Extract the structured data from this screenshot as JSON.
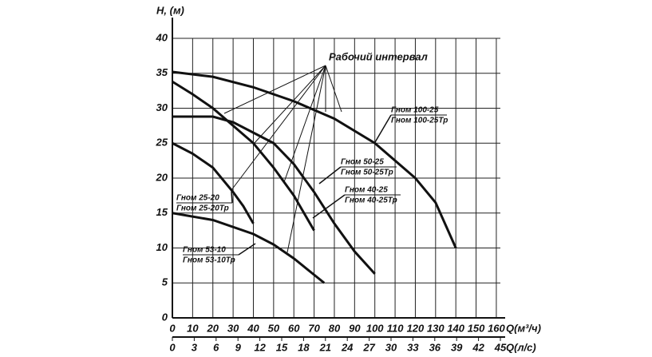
{
  "chart_data": {
    "type": "line",
    "y_label": "H, (м)",
    "x_label": "Q(м³/ч)",
    "x2_label": "Q(л/с)",
    "annotation": "Рабочий интервал",
    "xlim": [
      0,
      162
    ],
    "xticks": [
      0,
      10,
      20,
      30,
      40,
      50,
      60,
      70,
      80,
      90,
      100,
      110,
      120,
      130,
      140,
      150,
      160
    ],
    "x2lim": [
      0,
      45
    ],
    "x2ticks": [
      0,
      3,
      6,
      9,
      12,
      15,
      18,
      21,
      24,
      27,
      30,
      33,
      36,
      39,
      42,
      45
    ],
    "ylim": [
      0,
      40
    ],
    "yticks": [
      0,
      5,
      10,
      15,
      20,
      25,
      30,
      35,
      40
    ],
    "grid": true,
    "series": [
      {
        "labels": [
          "Гном 100-25",
          "Гном 100-25Тр"
        ],
        "color": "#111111",
        "x": [
          0,
          20,
          40,
          60,
          80,
          100,
          120,
          130,
          140
        ],
        "values": [
          35.2,
          34.5,
          33,
          31,
          28.5,
          25,
          20,
          16.5,
          10
        ]
      },
      {
        "labels": [
          "Гном 50-25",
          "Гном 50-25Тр"
        ],
        "color": "#111111",
        "x": [
          0,
          10,
          20,
          30,
          40,
          50,
          60,
          70
        ],
        "values": [
          33.8,
          32,
          30,
          27.5,
          25,
          21.5,
          17.5,
          12.5
        ]
      },
      {
        "labels": [
          "Гном 40-25",
          "Гном 40-25Тр"
        ],
        "color": "#111111",
        "x": [
          0,
          20,
          30,
          40,
          50,
          60,
          70,
          80,
          90,
          100
        ],
        "values": [
          28.8,
          28.8,
          28,
          26.5,
          25,
          22,
          18,
          13.5,
          9.5,
          6.3
        ]
      },
      {
        "labels": [
          "Гном 25-20",
          "Гном 25-20Тр"
        ],
        "color": "#111111",
        "x": [
          0,
          10,
          20,
          30,
          35,
          40
        ],
        "values": [
          25,
          23.5,
          21.5,
          18,
          16,
          13.5
        ]
      },
      {
        "labels": [
          "Гном 53-10",
          "Гном 53-10Тр"
        ],
        "color": "#111111",
        "x": [
          0,
          20,
          40,
          50,
          60,
          75
        ],
        "values": [
          15,
          14,
          12,
          10.5,
          8.5,
          5
        ]
      }
    ]
  }
}
